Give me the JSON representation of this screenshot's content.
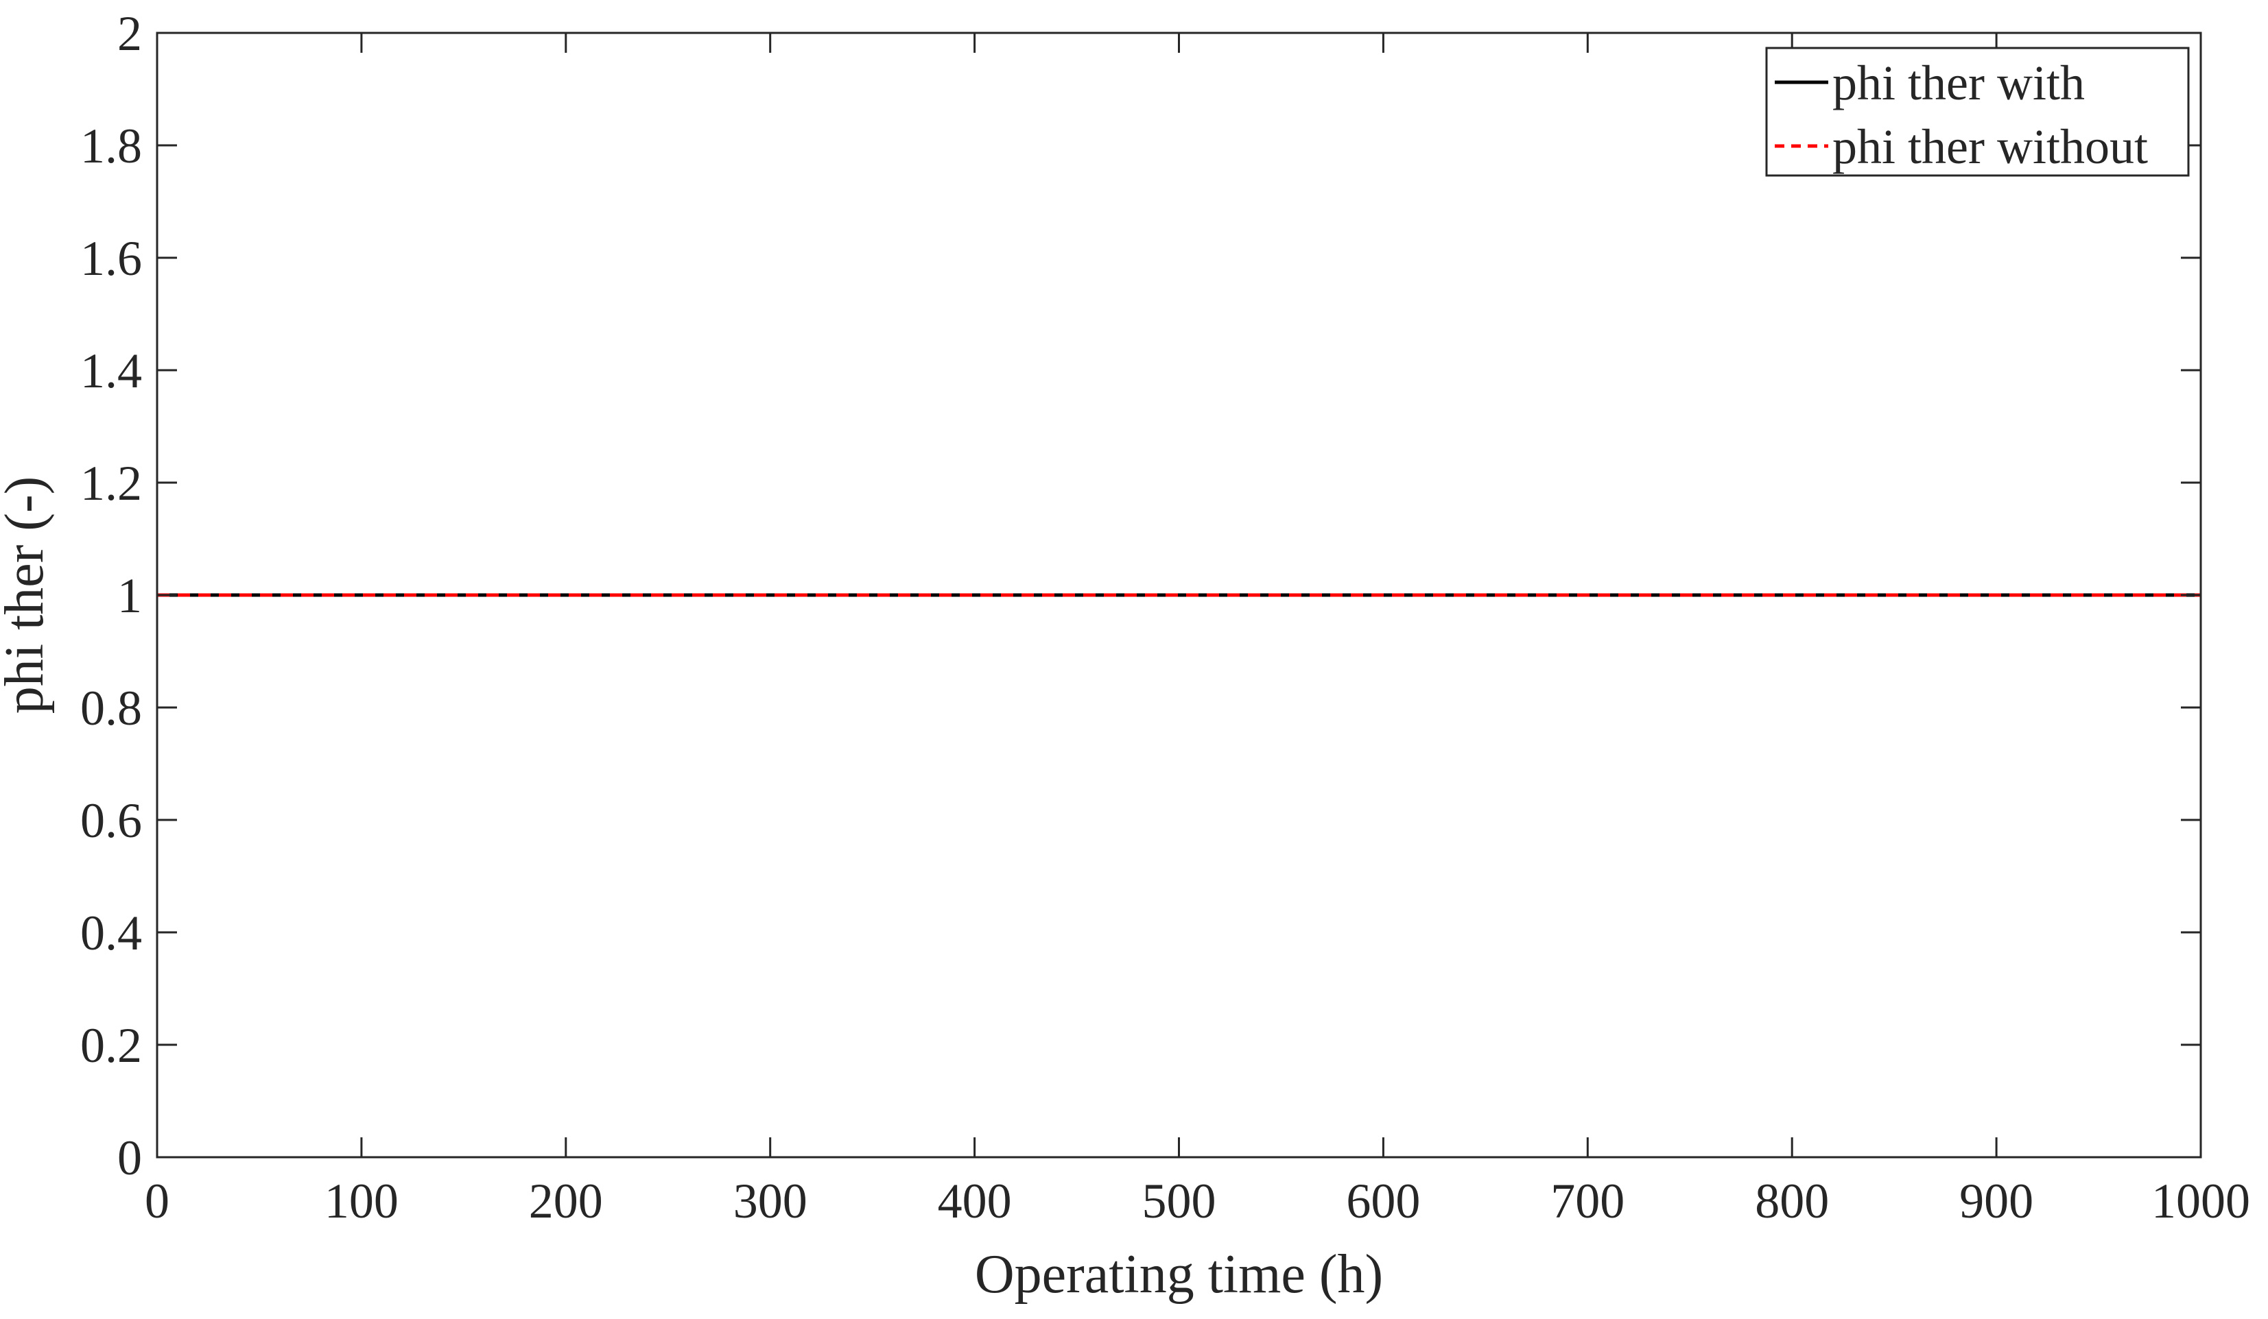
{
  "chart_data": {
    "type": "line",
    "title": "",
    "xlabel": "Operating time (h)",
    "ylabel": "phi ther (-)",
    "xlim": [
      0,
      1000
    ],
    "ylim": [
      0,
      2
    ],
    "x_ticks": [
      0,
      100,
      200,
      300,
      400,
      500,
      600,
      700,
      800,
      900,
      1000
    ],
    "x_tick_labels": [
      "0",
      "100",
      "200",
      "300",
      "400",
      "500",
      "600",
      "700",
      "800",
      "900",
      "1000"
    ],
    "y_ticks": [
      0,
      0.2,
      0.4,
      0.6,
      0.8,
      1,
      1.2,
      1.4,
      1.6,
      1.8,
      2
    ],
    "y_tick_labels": [
      "0",
      "0.2",
      "0.4",
      "0.6",
      "0.8",
      "1",
      "1.2",
      "1.4",
      "1.6",
      "1.8",
      "2"
    ],
    "grid": false,
    "legend_position": "top-right",
    "series": [
      {
        "name": "phi ther with",
        "color": "#000000",
        "line_style": "solid",
        "x": [
          0,
          1000
        ],
        "y": [
          1,
          1
        ]
      },
      {
        "name": "phi ther without",
        "color": "#ff0000",
        "line_style": "dashed",
        "x": [
          0,
          1000
        ],
        "y": [
          1,
          1
        ]
      }
    ]
  }
}
